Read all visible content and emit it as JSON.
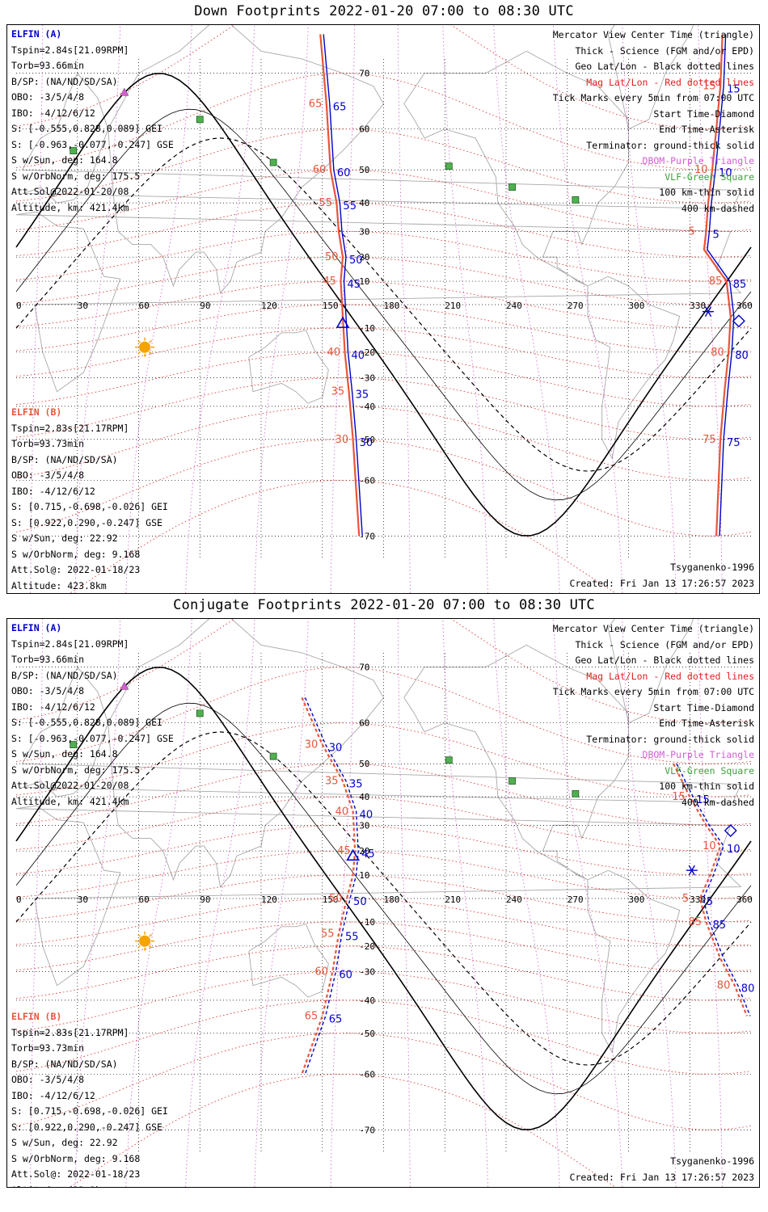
{
  "panels": [
    {
      "id": "down",
      "title": "Down Footprints 2022-01-20 07:00 to 08:30 UTC"
    },
    {
      "id": "conjugate",
      "title": "Conjugate Footprints 2022-01-20 07:00 to 08:30 UTC"
    }
  ],
  "elfin_a": {
    "header": "ELFIN (A)",
    "lines": [
      "Tspin=2.84s[21.09RPM]",
      "Torb=93.66min",
      "B/SP: (NA/ND/SD/SA)",
      "OBO: -3/5/4/8",
      "IBO: -4/12/6/12",
      "S: [-0.555,0.828,0.089] GEI",
      "S: [-0.963,-0.077,-0.247] GSE",
      "S w/Sun, deg: 164.8",
      "S w/OrbNorm, deg: 175.5",
      "Att.Sol@2022-01-20/08",
      "Altitude, km: 421.4km"
    ]
  },
  "elfin_b": {
    "header": "ELFIN (B)",
    "lines": [
      "Tspin=2.83s[21.17RPM]",
      "Torb=93.73min",
      "B/SP: (NA/ND/SD/SA)",
      "OBO: -3/5/4/8",
      "IBO: -4/12/6/12",
      "S: [0.715,-0.698,-0.026] GEI",
      "S: [0.922,0.290,-0.247] GSE",
      "S w/Sun, deg: 22.92",
      "S w/OrbNorm, deg: 9.168",
      "Att.Sol@: 2022-01-18/23",
      "Altitude: 423.8km"
    ]
  },
  "legend": [
    {
      "text": "Mercator View Center Time (triangle)",
      "color": "#000000"
    },
    {
      "text": "Thick - Science (FGM and/or EPD)",
      "color": "#000000"
    },
    {
      "text": "Geo Lat/Lon - Black dotted lines",
      "color": "#000000"
    },
    {
      "text": "Mag Lat/Lon - Red dotted lines",
      "color": "#e02020"
    },
    {
      "text": "Tick Marks every 5min from 07:00 UTC",
      "color": "#000000"
    },
    {
      "text": "Start Time-Diamond",
      "color": "#000000"
    },
    {
      "text": "End Time-Asterisk",
      "color": "#000000"
    },
    {
      "text": "Terminator: ground-thick solid",
      "color": "#000000"
    },
    {
      "text": "DBOM-Purple Triangle",
      "color": "#d060d0"
    },
    {
      "text": "VLF-Green Square",
      "color": "#40a040"
    },
    {
      "text": "100 km-thin solid",
      "color": "#000000"
    },
    {
      "text": "400 km-dashed",
      "color": "#000000"
    }
  ],
  "model": "Tsyganenko-1996",
  "created": "Created: Fri Jan 13 17:26:57 2023",
  "map": {
    "lon_ticks": [
      "0",
      "30",
      "60",
      "90",
      "120",
      "150",
      "180",
      "210",
      "240",
      "270",
      "300",
      "330",
      "360"
    ],
    "lat_ticks": [
      "70",
      "60",
      "50",
      "40",
      "30",
      "20",
      "10",
      "-10",
      "-20",
      "-30",
      "-40",
      "-50",
      "-60",
      "-70"
    ],
    "colors": {
      "elfin_a": "#0000cc",
      "elfin_b": "#e8553a",
      "mag_grid": "#e02020",
      "geo_grid": "#000000",
      "dbom": "#d060d0",
      "vlf": "#40a040",
      "sun": "#f5a300"
    },
    "vlf_stations": [
      [
        90,
        62
      ],
      [
        28,
        55
      ],
      [
        126,
        52
      ],
      [
        212,
        51
      ],
      [
        243,
        45
      ],
      [
        274,
        41
      ]
    ],
    "down_tracks": {
      "elfin_a": {
        "points": [
          [
            149,
            75
          ],
          [
            152,
            65
          ],
          [
            154,
            50
          ],
          [
            157,
            40
          ],
          [
            158,
            30
          ],
          [
            160,
            20
          ],
          [
            159,
            10
          ],
          [
            160,
            -5
          ],
          [
            161,
            -20
          ],
          [
            163,
            -35
          ],
          [
            165,
            -50
          ],
          [
            168,
            -70
          ]
        ],
        "labels": [
          "65",
          "60",
          "55",
          "50",
          "45",
          "40",
          "35",
          "30"
        ]
      },
      "elfin_b": {
        "points": [
          [
            346,
            75
          ],
          [
            345,
            68
          ],
          [
            343,
            60
          ],
          [
            341,
            50
          ],
          [
            339,
            40
          ],
          [
            338,
            30
          ],
          [
            337,
            23
          ],
          [
            348,
            10
          ],
          [
            350,
            -5
          ],
          [
            349,
            -20
          ],
          [
            347,
            -35
          ],
          [
            345,
            -50
          ],
          [
            343,
            -70
          ]
        ],
        "labels": [
          "15",
          "10",
          "5",
          "85",
          "80",
          "75"
        ]
      }
    },
    "conjugate_tracks": {
      "elfin_a": {
        "points": [
          [
            140,
            65
          ],
          [
            150,
            55
          ],
          [
            160,
            45
          ],
          [
            165,
            35
          ],
          [
            166,
            20
          ],
          [
            165,
            10
          ],
          [
            162,
            0
          ],
          [
            158,
            -15
          ],
          [
            155,
            -30
          ],
          [
            150,
            -45
          ],
          [
            140,
            -60
          ]
        ],
        "labels": [
          "30",
          "35",
          "40",
          "45",
          "50",
          "55",
          "60",
          "65"
        ]
      },
      "elfin_b": {
        "points": [
          [
            322,
            50
          ],
          [
            330,
            40
          ],
          [
            338,
            30
          ],
          [
            345,
            22
          ],
          [
            340,
            10
          ],
          [
            335,
            0
          ],
          [
            338,
            -10
          ],
          [
            345,
            -25
          ],
          [
            352,
            -35
          ],
          [
            358,
            -45
          ]
        ],
        "labels": [
          "15",
          "10",
          "5",
          "85",
          "80"
        ]
      }
    }
  }
}
